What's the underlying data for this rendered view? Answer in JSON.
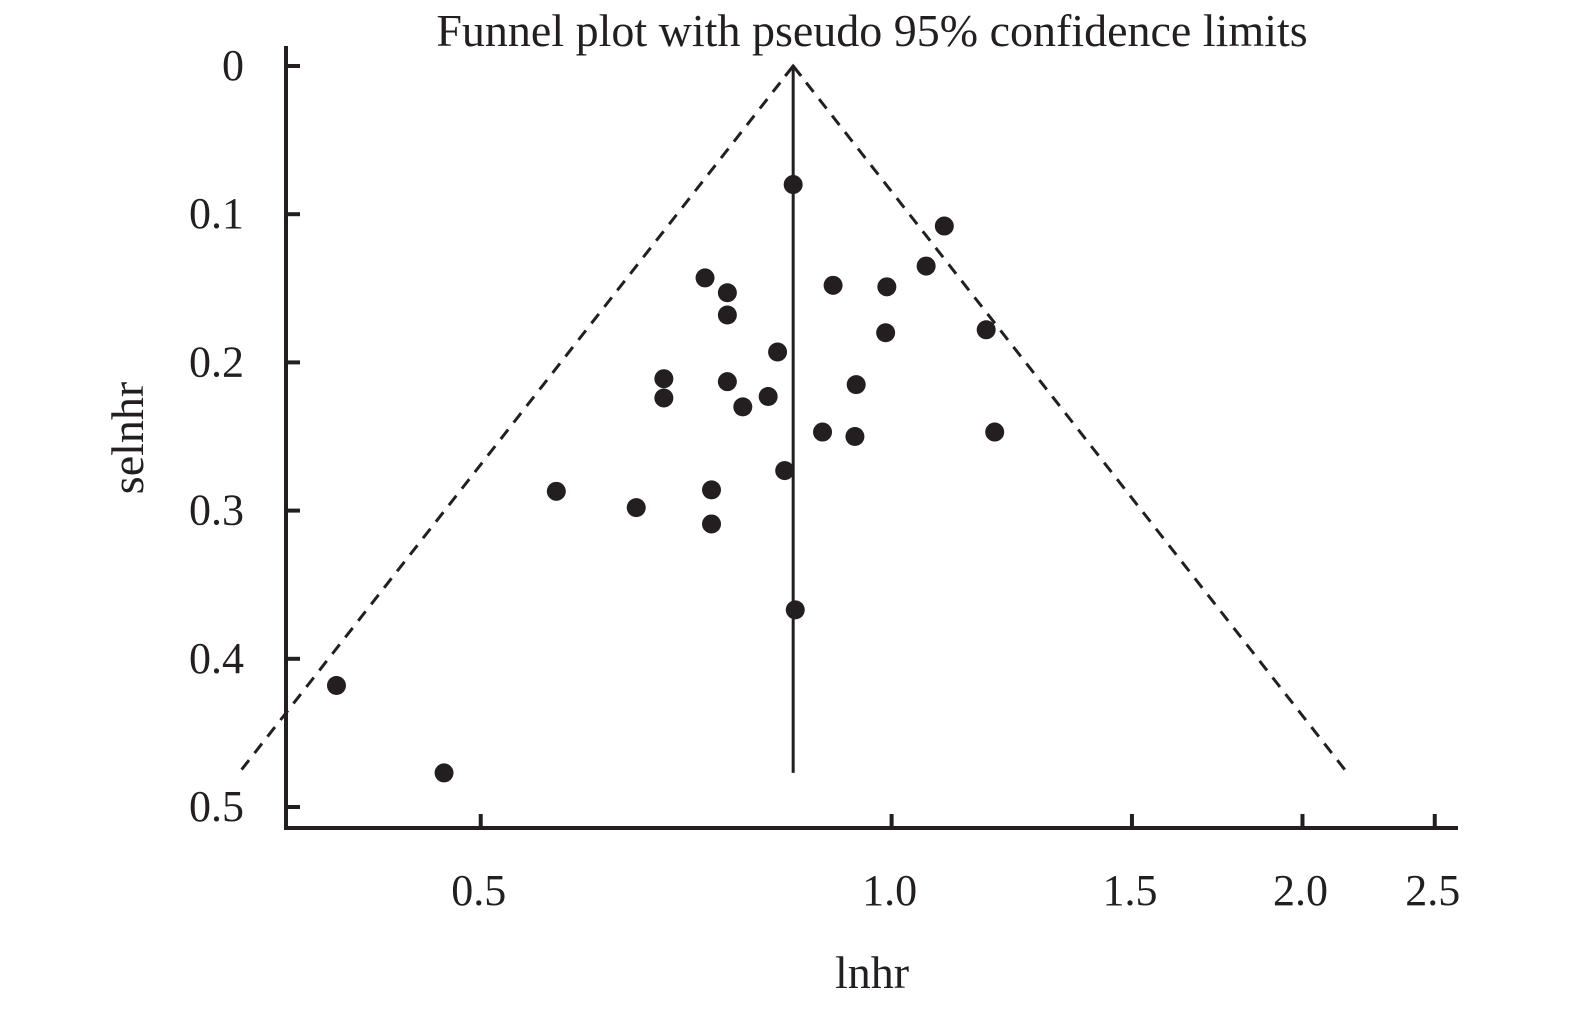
{
  "chart_data": {
    "type": "scatter",
    "title": "Funnel plot with pseudo 95% confidence limits",
    "xlabel": "lnhr",
    "ylabel": "selnhr",
    "x_scale": "log",
    "y_reversed": true,
    "xlim": [
      0.36,
      2.6
    ],
    "ylim": [
      0,
      0.5
    ],
    "x_ticks": [
      0.5,
      1.0,
      1.5,
      2.0,
      2.5
    ],
    "x_tick_labels": [
      "0.5",
      "1.0",
      "1.5",
      "2.0",
      "2.5"
    ],
    "y_ticks": [
      0,
      0.1,
      0.2,
      0.3,
      0.4,
      0.5
    ],
    "y_tick_labels": [
      "0",
      "0.1",
      "0.2",
      "0.3",
      "0.4",
      "0.5"
    ],
    "pooled_estimate": 0.847,
    "pooled_se_max": 0.477,
    "confidence_limit_line": "dashed",
    "grid": false,
    "legend": "none",
    "colors": {
      "ink": "#231f20"
    },
    "points": [
      {
        "x": 0.847,
        "y": 0.08
      },
      {
        "x": 1.093,
        "y": 0.108
      },
      {
        "x": 1.06,
        "y": 0.135
      },
      {
        "x": 0.73,
        "y": 0.143
      },
      {
        "x": 0.758,
        "y": 0.153
      },
      {
        "x": 0.906,
        "y": 0.148
      },
      {
        "x": 0.992,
        "y": 0.149
      },
      {
        "x": 0.758,
        "y": 0.168
      },
      {
        "x": 0.99,
        "y": 0.18
      },
      {
        "x": 1.173,
        "y": 0.178
      },
      {
        "x": 0.825,
        "y": 0.193
      },
      {
        "x": 0.681,
        "y": 0.211
      },
      {
        "x": 0.758,
        "y": 0.213
      },
      {
        "x": 0.942,
        "y": 0.215
      },
      {
        "x": 0.681,
        "y": 0.224
      },
      {
        "x": 0.812,
        "y": 0.223
      },
      {
        "x": 0.778,
        "y": 0.23
      },
      {
        "x": 0.89,
        "y": 0.247
      },
      {
        "x": 0.94,
        "y": 0.25
      },
      {
        "x": 1.19,
        "y": 0.247
      },
      {
        "x": 0.835,
        "y": 0.273
      },
      {
        "x": 0.568,
        "y": 0.287
      },
      {
        "x": 0.738,
        "y": 0.286
      },
      {
        "x": 0.65,
        "y": 0.298
      },
      {
        "x": 0.738,
        "y": 0.309
      },
      {
        "x": 0.85,
        "y": 0.367
      },
      {
        "x": 0.392,
        "y": 0.418
      },
      {
        "x": 0.47,
        "y": 0.477
      }
    ]
  }
}
